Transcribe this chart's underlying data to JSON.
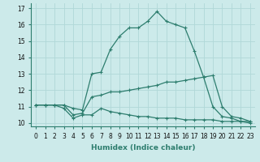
{
  "xlabel": "Humidex (Indice chaleur)",
  "background_color": "#cceaea",
  "line_color": "#2d7d6e",
  "series": [
    {
      "x": [
        0,
        1,
        2,
        3,
        4,
        5,
        6,
        7,
        8,
        9,
        10,
        11,
        12,
        13,
        14,
        15,
        16,
        17,
        18,
        19,
        20,
        21,
        22,
        23
      ],
      "y": [
        11.1,
        11.1,
        11.1,
        11.1,
        10.9,
        10.8,
        13.0,
        13.1,
        14.5,
        15.3,
        15.8,
        15.8,
        16.2,
        16.8,
        16.2,
        16.0,
        15.8,
        14.4,
        12.8,
        11.0,
        10.4,
        10.3,
        10.1,
        10.1
      ],
      "marker": true
    },
    {
      "x": [
        0,
        1,
        2,
        3,
        4,
        5,
        6,
        7,
        8,
        9,
        10,
        11,
        12,
        13,
        14,
        15,
        16,
        17,
        18,
        19,
        20,
        21,
        22,
        23
      ],
      "y": [
        11.1,
        11.1,
        11.1,
        11.1,
        10.5,
        10.6,
        11.6,
        11.7,
        11.9,
        11.9,
        12.0,
        12.1,
        12.2,
        12.3,
        12.5,
        12.5,
        12.6,
        12.7,
        12.8,
        12.9,
        11.0,
        10.4,
        10.3,
        10.1
      ],
      "marker": true
    },
    {
      "x": [
        0,
        1,
        2,
        3,
        4,
        5,
        6,
        7,
        8,
        9,
        10,
        11,
        12,
        13,
        14,
        15,
        16,
        17,
        18,
        19,
        20,
        21,
        22,
        23
      ],
      "y": [
        11.1,
        11.1,
        11.1,
        10.9,
        10.3,
        10.5,
        10.5,
        10.9,
        10.7,
        10.6,
        10.5,
        10.4,
        10.4,
        10.3,
        10.3,
        10.3,
        10.2,
        10.2,
        10.2,
        10.2,
        10.1,
        10.1,
        10.1,
        10.0
      ],
      "marker": true
    }
  ],
  "xlim": [
    -0.5,
    23.5
  ],
  "ylim": [
    9.8,
    17.3
  ],
  "yticks": [
    10,
    11,
    12,
    13,
    14,
    15,
    16,
    17
  ],
  "xticks": [
    0,
    1,
    2,
    3,
    4,
    5,
    6,
    7,
    8,
    9,
    10,
    11,
    12,
    13,
    14,
    15,
    16,
    17,
    18,
    19,
    20,
    21,
    22,
    23
  ],
  "markersize": 3,
  "linewidth": 0.9,
  "grid_color": "#b0d8d8",
  "tick_fontsize": 5.5,
  "xlabel_fontsize": 6.5
}
